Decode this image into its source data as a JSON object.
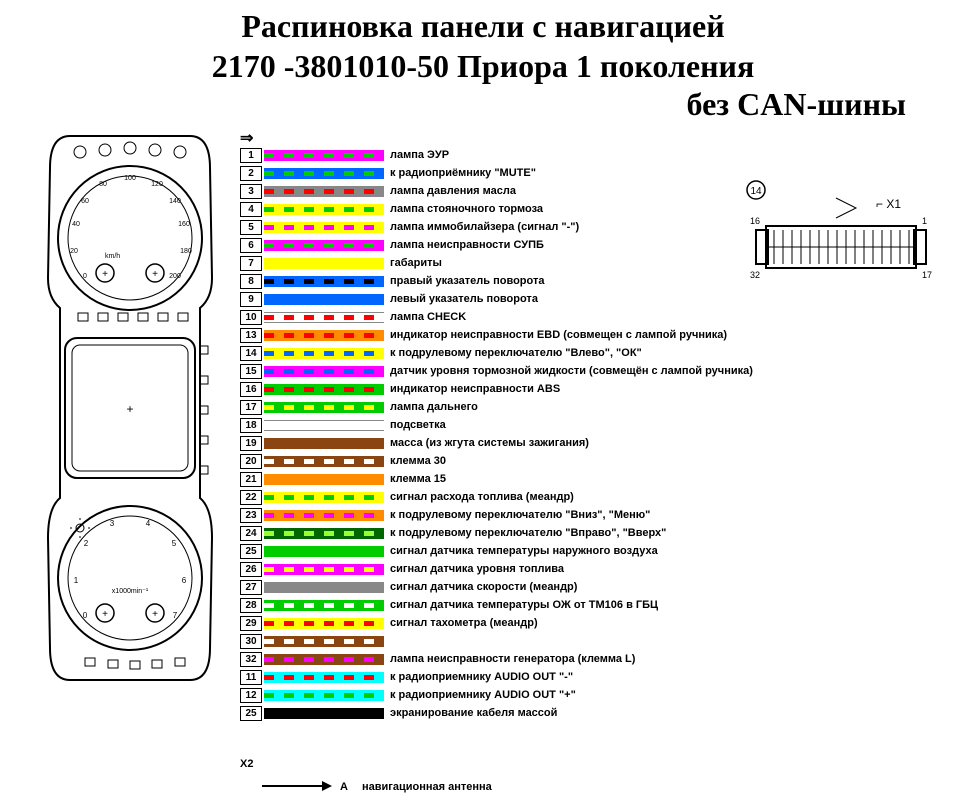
{
  "title": {
    "line1": "Распиновка панели с навигацией",
    "line2": "2170 -3801010-50 Приора 1 поколения",
    "line3": "без CAN-шины"
  },
  "colors": {
    "magenta": "#ff00ff",
    "green": "#00cc00",
    "blue": "#0066ff",
    "yellow": "#ffff00",
    "red": "#ff0000",
    "white": "#ffffff",
    "black": "#000000",
    "gray": "#888888",
    "brown": "#8b4513",
    "cyan": "#00ffff",
    "orange": "#ff8c00",
    "lime": "#99ff33",
    "darkgreen": "#006600"
  },
  "pins": [
    {
      "num": "1",
      "base": "#ff00ff",
      "stripe": "#00cc00",
      "pattern": "dash",
      "label": "лампа ЭУР"
    },
    {
      "num": "2",
      "base": "#0066ff",
      "stripe": "#00cc00",
      "pattern": "dash",
      "label": "к радиоприёмнику \"MUTE\""
    },
    {
      "num": "3",
      "base": "#888888",
      "stripe": "#ff0000",
      "pattern": "dash",
      "label": "лампа давления масла"
    },
    {
      "num": "4",
      "base": "#ffff00",
      "stripe": "#00cc00",
      "pattern": "dash",
      "label": "лампа стояночного тормоза"
    },
    {
      "num": "5",
      "base": "#ffff00",
      "stripe": "#ff00ff",
      "pattern": "dash",
      "label": "лампа иммобилайзера (сигнал \"-\")"
    },
    {
      "num": "6",
      "base": "#ff00ff",
      "stripe": "#00cc00",
      "pattern": "dash",
      "label": "лампа неисправности СУПБ"
    },
    {
      "num": "7",
      "base": "#ffff00",
      "stripe": null,
      "pattern": "solid",
      "label": "габариты"
    },
    {
      "num": "8",
      "base": "#0066ff",
      "stripe": "#000000",
      "pattern": "dash",
      "label": "правый указатель поворота"
    },
    {
      "num": "9",
      "base": "#0066ff",
      "stripe": null,
      "pattern": "solid",
      "label": "левый указатель поворота"
    },
    {
      "num": "10",
      "base": "#ffffff",
      "stripe": "#ff0000",
      "pattern": "dash",
      "label": "лампа CHECK"
    },
    {
      "num": "13",
      "base": "#ff8c00",
      "stripe": "#ff0000",
      "pattern": "dash",
      "label": "индикатор неисправности EBD (совмещен с лампой ручника)"
    },
    {
      "num": "14",
      "base": "#ffff00",
      "stripe": "#0066ff",
      "pattern": "dash",
      "label": "к подрулевому переключателю \"Влево\", \"ОК\""
    },
    {
      "num": "15",
      "base": "#ff00ff",
      "stripe": "#0066ff",
      "pattern": "dash",
      "label": "датчик уровня тормозной жидкости (совмещён с лампой ручника)"
    },
    {
      "num": "16",
      "base": "#00cc00",
      "stripe": "#ff0000",
      "pattern": "dash",
      "label": "индикатор неисправности ABS"
    },
    {
      "num": "17",
      "base": "#00cc00",
      "stripe": "#ffff00",
      "pattern": "dash",
      "label": "лампа дальнего"
    },
    {
      "num": "18",
      "base": "#ffffff",
      "stripe": null,
      "pattern": "solid",
      "label": "подсветка"
    },
    {
      "num": "19",
      "base": "#8b4513",
      "stripe": null,
      "pattern": "solid",
      "label": "масса (из жгута системы зажигания)"
    },
    {
      "num": "20",
      "base": "#8b4513",
      "stripe": "#ffffff",
      "pattern": "dash",
      "label": "клемма 30"
    },
    {
      "num": "21",
      "base": "#ff8c00",
      "stripe": null,
      "pattern": "solid",
      "label": "клемма 15"
    },
    {
      "num": "22",
      "base": "#ffff00",
      "stripe": "#00cc00",
      "pattern": "dash",
      "label": "сигнал расхода топлива (меандр)"
    },
    {
      "num": "23",
      "base": "#ff8c00",
      "stripe": "#ff00ff",
      "pattern": "dash",
      "label": "к подрулевому переключателю \"Вниз\", \"Меню\""
    },
    {
      "num": "24",
      "base": "#006600",
      "stripe": "#99ff33",
      "pattern": "dash",
      "label": "к подрулевому переключателю \"Вправо\", \"Вверх\""
    },
    {
      "num": "25",
      "base": "#00cc00",
      "stripe": null,
      "pattern": "solid",
      "label": "сигнал датчика температуры наружного воздуха"
    },
    {
      "num": "26",
      "base": "#ff00ff",
      "stripe": "#ffff00",
      "pattern": "dash",
      "label": "сигнал датчика уровня топлива"
    },
    {
      "num": "27",
      "base": "#888888",
      "stripe": null,
      "pattern": "solid",
      "label": "сигнал датчика скорости (меандр)"
    },
    {
      "num": "28",
      "base": "#00cc00",
      "stripe": "#ffffff",
      "pattern": "dash",
      "label": "сигнал датчика температуры ОЖ от ТМ106 в ГБЦ"
    },
    {
      "num": "29",
      "base": "#ffff00",
      "stripe": "#ff0000",
      "pattern": "dash",
      "label": "сигнал тахометра (меандр)"
    },
    {
      "num": "30",
      "base": "#8b4513",
      "stripe": "#ffffff",
      "pattern": "dash",
      "label": ""
    },
    {
      "num": "32",
      "base": "#8b4513",
      "stripe": "#ff00ff",
      "pattern": "dash",
      "label": "лампа неисправности генератора (клемма L)"
    },
    {
      "num": "11",
      "base": "#00ffff",
      "stripe": "#ff0000",
      "pattern": "dash",
      "label": "к радиоприемнику AUDIO OUT \"-\""
    },
    {
      "num": "12",
      "base": "#00ffff",
      "stripe": "#00cc00",
      "pattern": "dash",
      "label": "к радиоприемнику AUDIO OUT \"+\""
    },
    {
      "num": "25",
      "base": "#000000",
      "stripe": null,
      "pattern": "solid",
      "label": "экранирование кабеля массой"
    }
  ],
  "connector": {
    "badge": "14",
    "label": "X1",
    "top_left": "16",
    "bottom_left": "32",
    "top_right": "1",
    "bottom_right": "17"
  },
  "x2": {
    "label": "X2",
    "antenna_label": "навигационная антенна",
    "antenna_letter": "А"
  },
  "arrow_symbol": "⇒"
}
